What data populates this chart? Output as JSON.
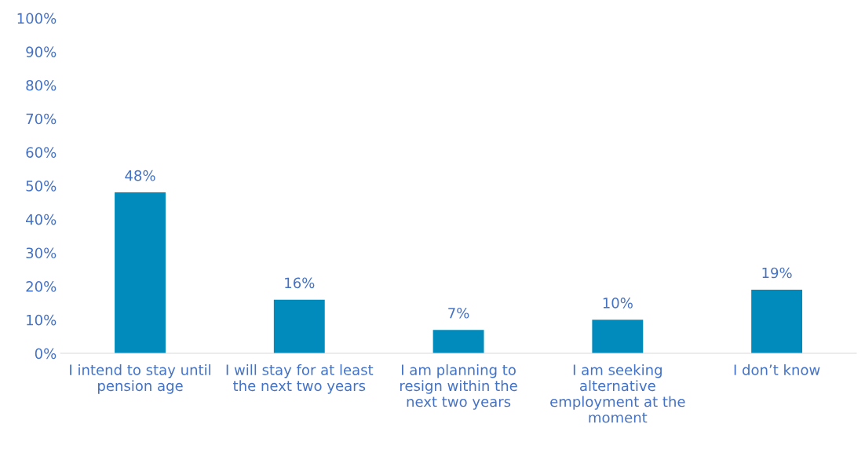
{
  "chart_data": {
    "type": "bar",
    "categories": [
      "I intend to stay until\npension age",
      "I will stay for at least\nthe next two years",
      "I am planning to\nresign within the\nnext two years",
      "I am seeking\nalternative\nemployment at the\nmoment",
      "I don’t know"
    ],
    "values": [
      48,
      16,
      7,
      10,
      19
    ],
    "value_labels": [
      "48%",
      "16%",
      "7%",
      "10%",
      "19%"
    ],
    "color": "#008bbc",
    "ylim": [
      0,
      100
    ],
    "yticks": [
      {
        "value": 0,
        "label": "0%"
      },
      {
        "value": 10,
        "label": "10%"
      },
      {
        "value": 20,
        "label": "20%"
      },
      {
        "value": 30,
        "label": "30%"
      },
      {
        "value": 40,
        "label": "40%"
      },
      {
        "value": 50,
        "label": "50%"
      },
      {
        "value": 60,
        "label": "60%"
      },
      {
        "value": 70,
        "label": "70%"
      },
      {
        "value": 80,
        "label": "80%"
      },
      {
        "value": 90,
        "label": "90%"
      },
      {
        "value": 100,
        "label": "100%"
      }
    ],
    "grid": false,
    "legend": false
  }
}
